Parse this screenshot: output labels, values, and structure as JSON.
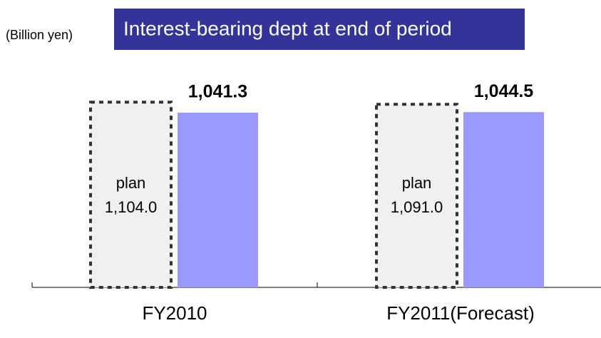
{
  "chart_data": {
    "type": "bar",
    "title": "Interest-bearing dept at end of period",
    "unit_label": "(Billion yen)",
    "categories": [
      "FY2010",
      "FY2011(Forecast)"
    ],
    "series": [
      {
        "name": "plan",
        "color": "#f0f0f0",
        "border": "dashed",
        "values": [
          1104.0,
          1091.0
        ],
        "value_labels": [
          "1,104.0",
          "1,091.0"
        ]
      },
      {
        "color": "#9999ff",
        "values": [
          1041.3,
          1044.5
        ],
        "value_labels": [
          "1,041.3",
          "1,044.5"
        ]
      }
    ]
  }
}
